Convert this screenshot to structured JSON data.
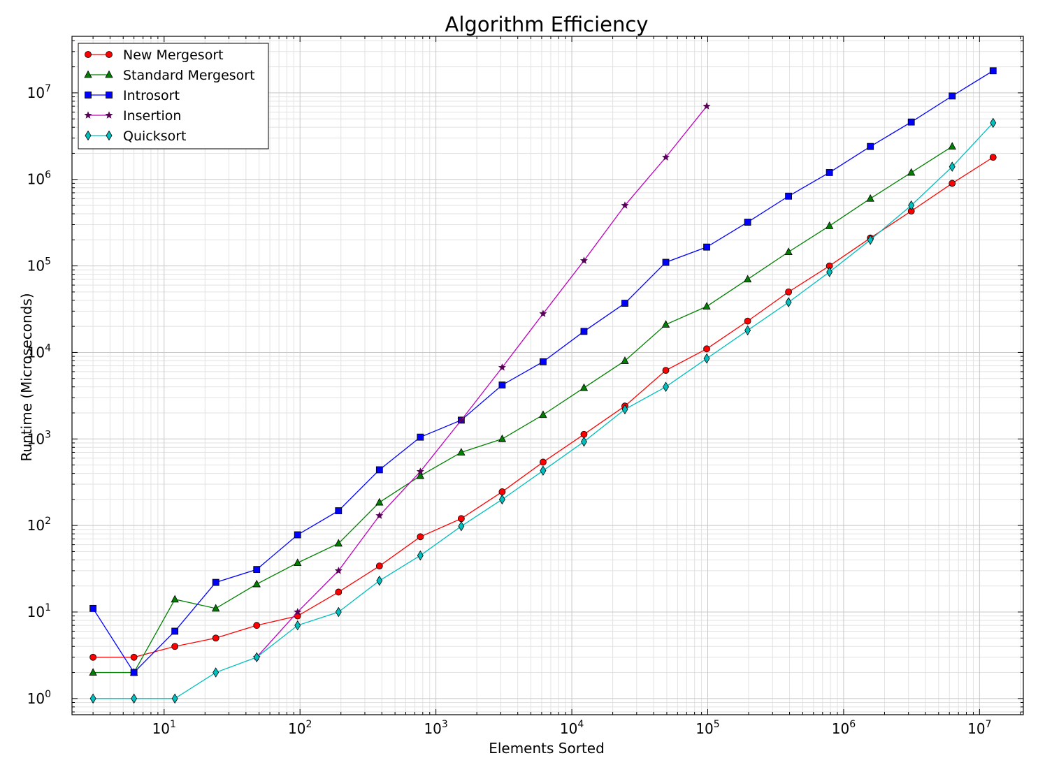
{
  "chart_data": {
    "type": "line",
    "title": "Algorithm Efficiency",
    "xlabel": "Elements Sorted",
    "ylabel": "Runtime (Microseconds)",
    "xscale": "log",
    "yscale": "log",
    "xlim": [
      2.1,
      21000000
    ],
    "ylim": [
      0.65,
      45000000
    ],
    "grid": true,
    "legend_position": "top-left",
    "x_ticks": [
      {
        "value": 10,
        "base": "10",
        "exp": "1"
      },
      {
        "value": 100,
        "base": "10",
        "exp": "2"
      },
      {
        "value": 1000,
        "base": "10",
        "exp": "3"
      },
      {
        "value": 10000,
        "base": "10",
        "exp": "4"
      },
      {
        "value": 100000,
        "base": "10",
        "exp": "5"
      },
      {
        "value": 1000000,
        "base": "10",
        "exp": "6"
      },
      {
        "value": 10000000,
        "base": "10",
        "exp": "7"
      }
    ],
    "y_ticks": [
      {
        "value": 1,
        "base": "10",
        "exp": "0"
      },
      {
        "value": 10,
        "base": "10",
        "exp": "1"
      },
      {
        "value": 100,
        "base": "10",
        "exp": "2"
      },
      {
        "value": 1000,
        "base": "10",
        "exp": "3"
      },
      {
        "value": 10000,
        "base": "10",
        "exp": "4"
      },
      {
        "value": 100000,
        "base": "10",
        "exp": "5"
      },
      {
        "value": 1000000,
        "base": "10",
        "exp": "6"
      },
      {
        "value": 10000000,
        "base": "10",
        "exp": "7"
      }
    ],
    "series": [
      {
        "name": "New Mergesort",
        "color": "#ff0000",
        "marker": "circle",
        "x": [
          3,
          6,
          12,
          24,
          48,
          96,
          192,
          384,
          768,
          1536,
          3072,
          6144,
          12288,
          24576,
          49152,
          98304,
          196608,
          393216,
          786432,
          1572864,
          3145728,
          6291456,
          12582912
        ],
        "y": [
          3,
          3,
          4,
          5,
          7,
          9,
          17,
          34,
          74,
          120,
          245,
          540,
          1130,
          2400,
          6200,
          11000,
          23000,
          50000,
          100000,
          210000,
          430000,
          900000,
          1800000
        ]
      },
      {
        "name": "Standard Mergesort",
        "color": "#008000",
        "marker": "triangle",
        "x": [
          3,
          6,
          12,
          24,
          48,
          96,
          192,
          384,
          768,
          1536,
          3072,
          6144,
          12288,
          24576,
          49152,
          98304,
          196608,
          393216,
          786432,
          1572864,
          3145728,
          6291456
        ],
        "y": [
          2,
          2,
          14,
          11,
          21,
          37,
          62,
          185,
          375,
          700,
          1000,
          1900,
          3900,
          8000,
          21000,
          34000,
          70000,
          145000,
          290000,
          600000,
          1200000,
          2400000
        ]
      },
      {
        "name": "Introsort",
        "color": "#0000ff",
        "marker": "square",
        "x": [
          3,
          6,
          12,
          24,
          48,
          96,
          192,
          384,
          768,
          1536,
          3072,
          6144,
          12288,
          24576,
          49152,
          98304,
          196608,
          393216,
          786432,
          1572864,
          3145728,
          6291456,
          12582912
        ],
        "y": [
          11,
          2,
          6,
          22,
          31,
          78,
          148,
          440,
          1050,
          1650,
          4200,
          7800,
          17500,
          37000,
          110000,
          165000,
          320000,
          640000,
          1200000,
          2400000,
          4600000,
          9200000,
          18000000
        ]
      },
      {
        "name": "Insertion",
        "color": "#bf00bf",
        "marker": "star",
        "x": [
          48,
          96,
          192,
          384,
          768,
          1536,
          3072,
          6144,
          12288,
          24576,
          49152,
          98304
        ],
        "y": [
          3,
          10,
          30,
          130,
          420,
          1650,
          6700,
          28000,
          115000,
          500000,
          1800000,
          7000000
        ]
      },
      {
        "name": "Quicksort",
        "color": "#00bfbf",
        "marker": "diamond",
        "x": [
          3,
          6,
          12,
          24,
          48,
          96,
          192,
          384,
          768,
          1536,
          3072,
          6144,
          12288,
          24576,
          49152,
          98304,
          196608,
          393216,
          786432,
          1572864,
          3145728,
          6291456,
          12582912
        ],
        "y": [
          1,
          1,
          1,
          2,
          3,
          7,
          10,
          23,
          45,
          98,
          200,
          430,
          930,
          2200,
          4000,
          8500,
          18000,
          38000,
          85000,
          200000,
          500000,
          1400000,
          4500000
        ]
      }
    ]
  }
}
